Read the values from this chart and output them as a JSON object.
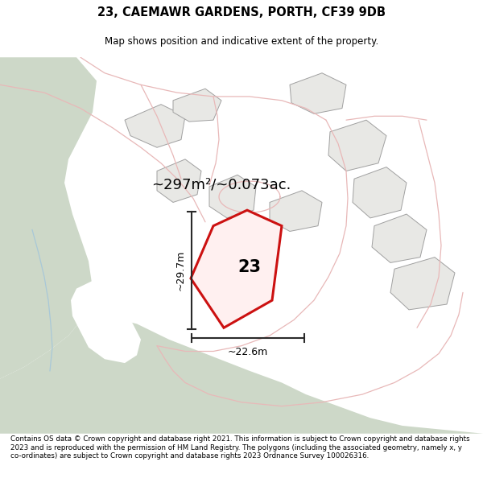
{
  "title_line1": "23, CAEMAWR GARDENS, PORTH, CF39 9DB",
  "title_line2": "Map shows position and indicative extent of the property.",
  "area_text": "~297m²/~0.073ac.",
  "label_number": "23",
  "dim_width": "~22.6m",
  "dim_height": "~29.7m",
  "footer_text": "Contains OS data © Crown copyright and database right 2021. This information is subject to Crown copyright and database rights 2023 and is reproduced with the permission of HM Land Registry. The polygons (including the associated geometry, namely x, y co-ordinates) are subject to Crown copyright and database rights 2023 Ordnance Survey 100026316.",
  "bg_color": "#f7f7f5",
  "map_bg": "#f2f2ef",
  "green_area": "#cdd8c8",
  "red_line_color": "#cc1111",
  "dim_line_color": "#2a2a2a",
  "plot_fill": "#e8e8e5",
  "plot_outline": "#c0b0b0",
  "road_pink": "#e8b8b8",
  "blue_line": "#a8c8d8",
  "white_road": "#ffffff"
}
